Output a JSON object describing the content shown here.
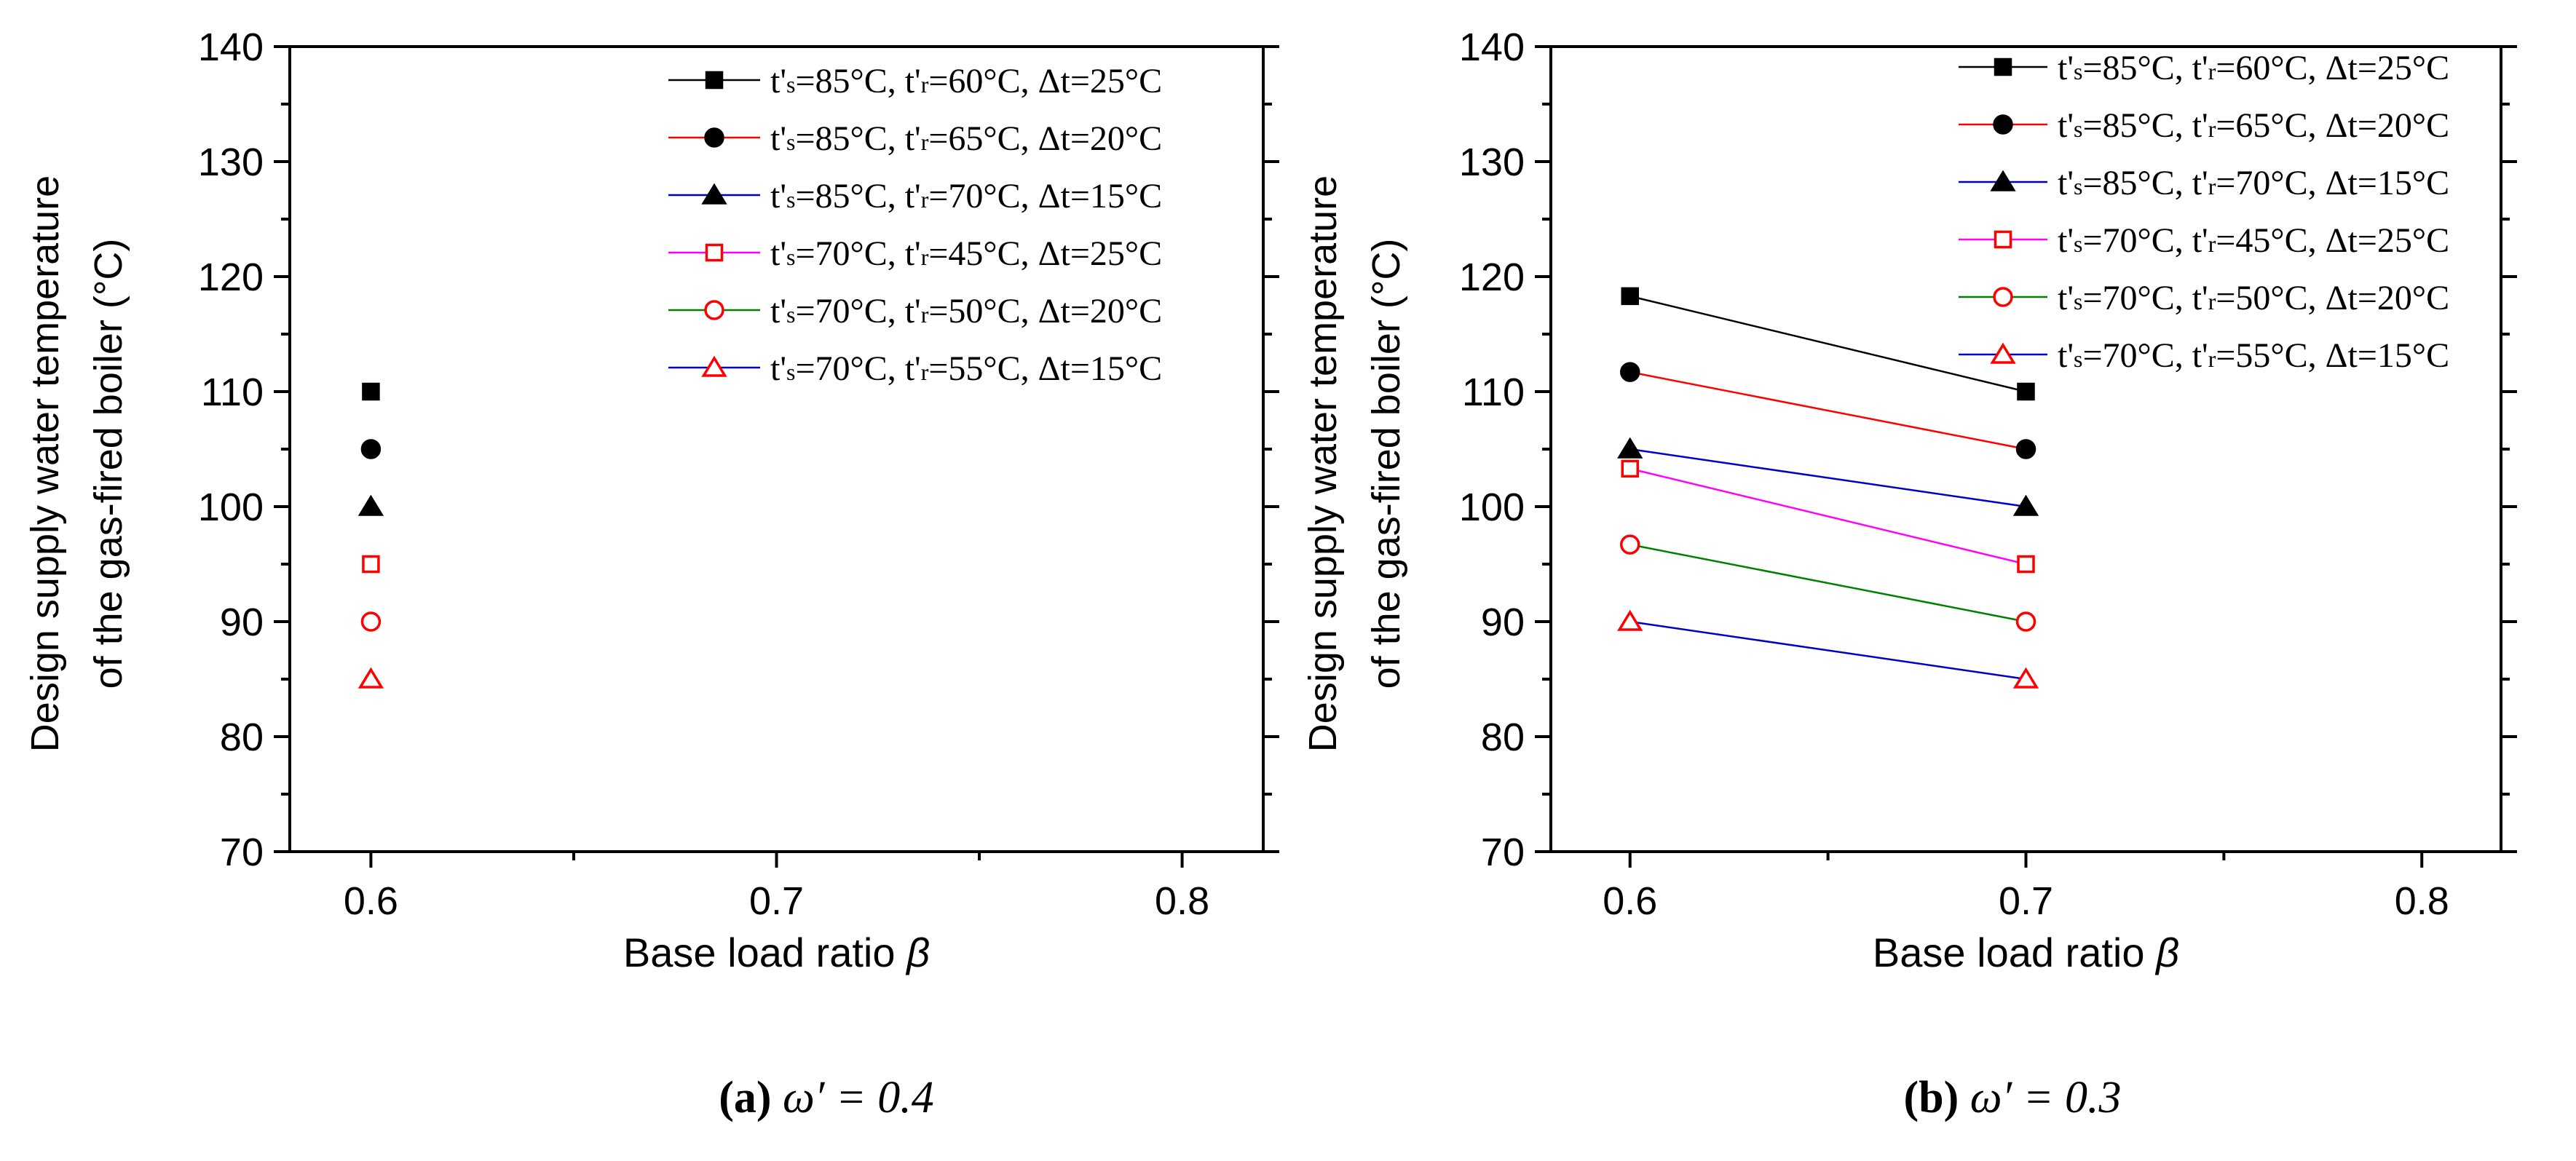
{
  "figure": {
    "panels": [
      {
        "id": "a",
        "caption_letter": "(a)",
        "caption_rest": " ω′ = 0.4"
      },
      {
        "id": "b",
        "caption_letter": "(b)",
        "caption_rest": " ω′ = 0.3"
      }
    ]
  },
  "chart_data": [
    {
      "type": "scatter",
      "panel": "a",
      "xlabel": "Base load ratio β",
      "ylabel_lines": [
        "Design supply water temperature",
        "of the gas-fired boiler (°C)"
      ],
      "xlim": [
        0.58,
        0.82
      ],
      "ylim": [
        70,
        140
      ],
      "xticks": [
        0.6,
        0.7,
        0.8
      ],
      "xtick_labels": [
        "0.6",
        "0.7",
        "0.8"
      ],
      "yticks": [
        70,
        80,
        90,
        100,
        110,
        120,
        130,
        140
      ],
      "ytick_labels": [
        "70",
        "80",
        "90",
        "100",
        "110",
        "120",
        "130",
        "140"
      ],
      "legend_position": "top-right",
      "series": [
        {
          "name": "t's=85°C, t'r=60°C, Δt=25°C",
          "line_color": "#000000",
          "marker": "square",
          "marker_color": "#000000",
          "filled": true,
          "x": [
            0.6
          ],
          "y": [
            110
          ]
        },
        {
          "name": "t's=85°C, t'r=65°C, Δt=20°C",
          "line_color": "#ff0000",
          "marker": "circle",
          "marker_color": "#000000",
          "filled": true,
          "x": [
            0.6
          ],
          "y": [
            105
          ]
        },
        {
          "name": "t's=85°C, t'r=70°C, Δt=15°C",
          "line_color": "#0000cc",
          "marker": "triangle",
          "marker_color": "#000000",
          "filled": true,
          "x": [
            0.6
          ],
          "y": [
            100
          ]
        },
        {
          "name": "t's=70°C, t'r=45°C, Δt=25°C",
          "line_color": "#ff00ff",
          "marker": "square",
          "marker_color": "#ff0000",
          "filled": false,
          "x": [
            0.6
          ],
          "y": [
            95
          ]
        },
        {
          "name": "t's=70°C, t'r=50°C, Δt=20°C",
          "line_color": "#008000",
          "marker": "circle",
          "marker_color": "#ff0000",
          "filled": false,
          "x": [
            0.6
          ],
          "y": [
            90
          ]
        },
        {
          "name": "t's=70°C, t'r=55°C, Δt=15°C",
          "line_color": "#0000cc",
          "marker": "triangle",
          "marker_color": "#ff0000",
          "filled": false,
          "x": [
            0.6
          ],
          "y": [
            85
          ]
        }
      ]
    },
    {
      "type": "line",
      "panel": "b",
      "xlabel": "Base load ratio β",
      "ylabel_lines": [
        "Design supply water temperature",
        "of the gas-fired boiler (°C)"
      ],
      "xlim": [
        0.58,
        0.82
      ],
      "ylim": [
        70,
        140
      ],
      "xticks": [
        0.6,
        0.7,
        0.8
      ],
      "xtick_labels": [
        "0.6",
        "0.7",
        "0.8"
      ],
      "yticks": [
        70,
        80,
        90,
        100,
        110,
        120,
        130,
        140
      ],
      "ytick_labels": [
        "70",
        "80",
        "90",
        "100",
        "110",
        "120",
        "130",
        "140"
      ],
      "legend_position": "top-right",
      "series": [
        {
          "name": "t's=85°C, t'r=60°C, Δt=25°C",
          "line_color": "#000000",
          "marker": "square",
          "marker_color": "#000000",
          "filled": true,
          "x": [
            0.6,
            0.7
          ],
          "y": [
            118.3,
            110
          ]
        },
        {
          "name": "t's=85°C, t'r=65°C, Δt=20°C",
          "line_color": "#ff0000",
          "marker": "circle",
          "marker_color": "#000000",
          "filled": true,
          "x": [
            0.6,
            0.7
          ],
          "y": [
            111.7,
            105
          ]
        },
        {
          "name": "t's=85°C, t'r=70°C, Δt=15°C",
          "line_color": "#0000cc",
          "marker": "triangle",
          "marker_color": "#000000",
          "filled": true,
          "x": [
            0.6,
            0.7
          ],
          "y": [
            105,
            100
          ]
        },
        {
          "name": "t's=70°C, t'r=45°C, Δt=25°C",
          "line_color": "#ff00ff",
          "marker": "square",
          "marker_color": "#ff0000",
          "filled": false,
          "x": [
            0.6,
            0.7
          ],
          "y": [
            103.3,
            95
          ]
        },
        {
          "name": "t's=70°C, t'r=50°C, Δt=20°C",
          "line_color": "#008000",
          "marker": "circle",
          "marker_color": "#ff0000",
          "filled": false,
          "x": [
            0.6,
            0.7
          ],
          "y": [
            96.7,
            90
          ]
        },
        {
          "name": "t's=70°C, t'r=55°C, Δt=15°C",
          "line_color": "#0000cc",
          "marker": "triangle",
          "marker_color": "#ff0000",
          "filled": false,
          "x": [
            0.6,
            0.7
          ],
          "y": [
            90,
            85
          ]
        }
      ]
    }
  ]
}
